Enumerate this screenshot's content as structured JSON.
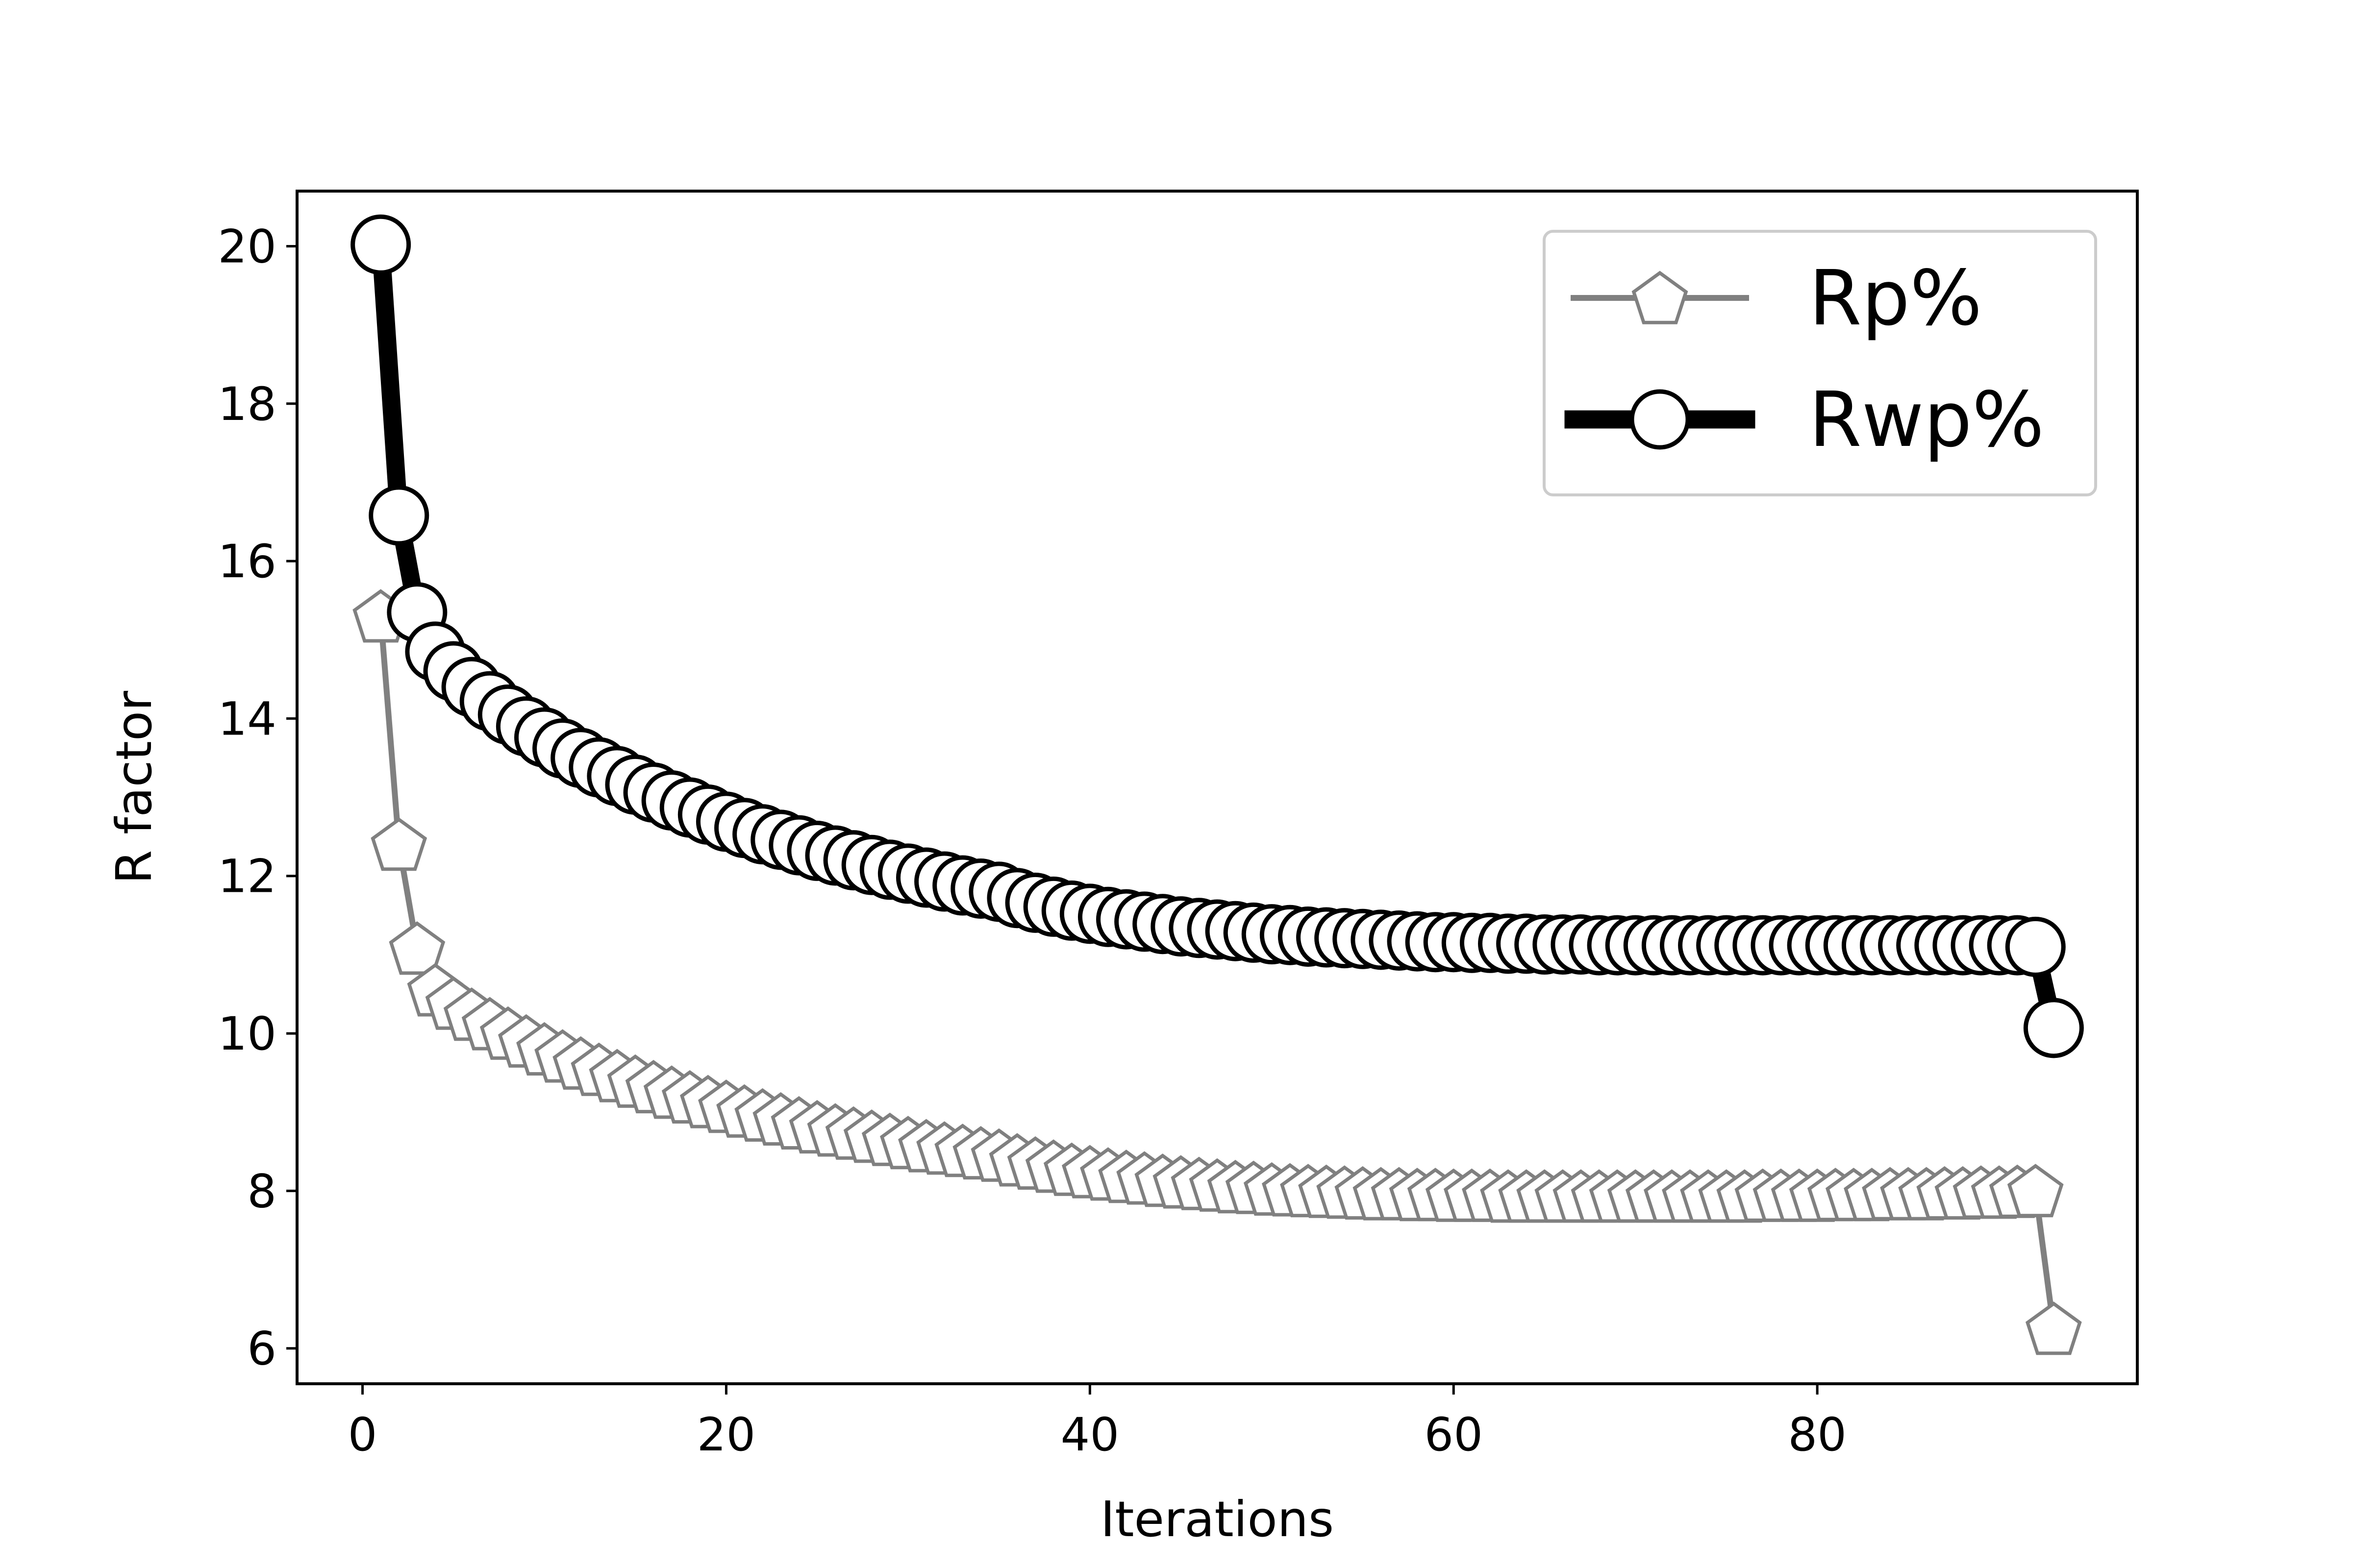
{
  "chart_data": {
    "type": "line",
    "title": "",
    "xlabel": "Iterations",
    "ylabel": "R factor",
    "xlim": [
      -3.6,
      97.6
    ],
    "ylim": [
      5.55,
      20.7
    ],
    "xticks": [
      0,
      20,
      40,
      60,
      80
    ],
    "yticks": [
      6,
      8,
      10,
      12,
      14,
      16,
      18,
      20
    ],
    "grid": false,
    "legend_position": "top-right",
    "series": [
      {
        "name": "Rp%",
        "color": "#808080",
        "marker": "pentagon",
        "x": [
          1,
          2,
          3,
          4,
          5,
          6,
          7,
          8,
          9,
          10,
          11,
          12,
          13,
          14,
          15,
          16,
          17,
          18,
          19,
          20,
          21,
          22,
          23,
          24,
          25,
          26,
          27,
          28,
          29,
          30,
          31,
          32,
          33,
          34,
          35,
          36,
          37,
          38,
          39,
          40,
          41,
          42,
          43,
          44,
          45,
          46,
          47,
          48,
          49,
          50,
          51,
          52,
          53,
          54,
          55,
          56,
          57,
          58,
          59,
          60,
          61,
          62,
          63,
          64,
          65,
          66,
          67,
          68,
          69,
          70,
          71,
          72,
          73,
          74,
          75,
          76,
          77,
          78,
          79,
          80,
          81,
          82,
          83,
          84,
          85,
          86,
          87,
          88,
          89,
          90,
          91,
          92,
          93
        ],
        "values": [
          15.3,
          12.4,
          11.08,
          10.55,
          10.38,
          10.24,
          10.12,
          10.0,
          9.9,
          9.8,
          9.71,
          9.62,
          9.54,
          9.46,
          9.39,
          9.32,
          9.25,
          9.19,
          9.13,
          9.07,
          9.01,
          8.96,
          8.91,
          8.86,
          8.81,
          8.77,
          8.73,
          8.69,
          8.65,
          8.61,
          8.57,
          8.54,
          8.51,
          8.48,
          8.45,
          8.39,
          8.35,
          8.31,
          8.27,
          8.24,
          8.21,
          8.18,
          8.16,
          8.13,
          8.11,
          8.09,
          8.07,
          8.05,
          8.04,
          8.02,
          8.01,
          8.0,
          7.99,
          7.98,
          7.97,
          7.96,
          7.96,
          7.95,
          7.95,
          7.94,
          7.94,
          7.94,
          7.93,
          7.93,
          7.93,
          7.93,
          7.93,
          7.93,
          7.93,
          7.93,
          7.93,
          7.93,
          7.93,
          7.93,
          7.93,
          7.93,
          7.94,
          7.94,
          7.94,
          7.94,
          7.95,
          7.95,
          7.95,
          7.96,
          7.96,
          7.96,
          7.97,
          7.97,
          7.98,
          7.98,
          7.99,
          8.0,
          6.25
        ]
      },
      {
        "name": "Rwp%",
        "color": "#000000",
        "marker": "circle",
        "x": [
          1,
          2,
          3,
          4,
          5,
          6,
          7,
          8,
          9,
          10,
          11,
          12,
          13,
          14,
          15,
          16,
          17,
          18,
          19,
          20,
          21,
          22,
          23,
          24,
          25,
          26,
          27,
          28,
          29,
          30,
          31,
          32,
          33,
          34,
          35,
          36,
          37,
          38,
          39,
          40,
          41,
          42,
          43,
          44,
          45,
          46,
          47,
          48,
          49,
          50,
          51,
          52,
          53,
          54,
          55,
          56,
          57,
          58,
          59,
          60,
          61,
          62,
          63,
          64,
          65,
          66,
          67,
          68,
          69,
          70,
          71,
          72,
          73,
          74,
          75,
          76,
          77,
          78,
          79,
          80,
          81,
          82,
          83,
          84,
          85,
          86,
          87,
          88,
          89,
          90,
          91,
          92,
          93
        ],
        "values": [
          20.02,
          16.58,
          15.35,
          14.85,
          14.6,
          14.4,
          14.22,
          14.05,
          13.9,
          13.76,
          13.62,
          13.5,
          13.38,
          13.27,
          13.16,
          13.06,
          12.96,
          12.87,
          12.78,
          12.69,
          12.61,
          12.53,
          12.46,
          12.39,
          12.32,
          12.26,
          12.2,
          12.14,
          12.08,
          12.03,
          11.98,
          11.93,
          11.88,
          11.84,
          11.8,
          11.72,
          11.66,
          11.61,
          11.56,
          11.52,
          11.48,
          11.45,
          11.42,
          11.39,
          11.36,
          11.34,
          11.32,
          11.3,
          11.28,
          11.26,
          11.25,
          11.23,
          11.22,
          11.21,
          11.2,
          11.19,
          11.18,
          11.17,
          11.16,
          11.16,
          11.15,
          11.15,
          11.14,
          11.14,
          11.13,
          11.13,
          11.13,
          11.12,
          11.12,
          11.12,
          11.12,
          11.12,
          11.12,
          11.12,
          11.12,
          11.12,
          11.12,
          11.12,
          11.12,
          11.12,
          11.12,
          11.12,
          11.12,
          11.12,
          11.12,
          11.12,
          11.12,
          11.12,
          11.12,
          11.12,
          11.12,
          11.1,
          10.07
        ]
      }
    ]
  }
}
